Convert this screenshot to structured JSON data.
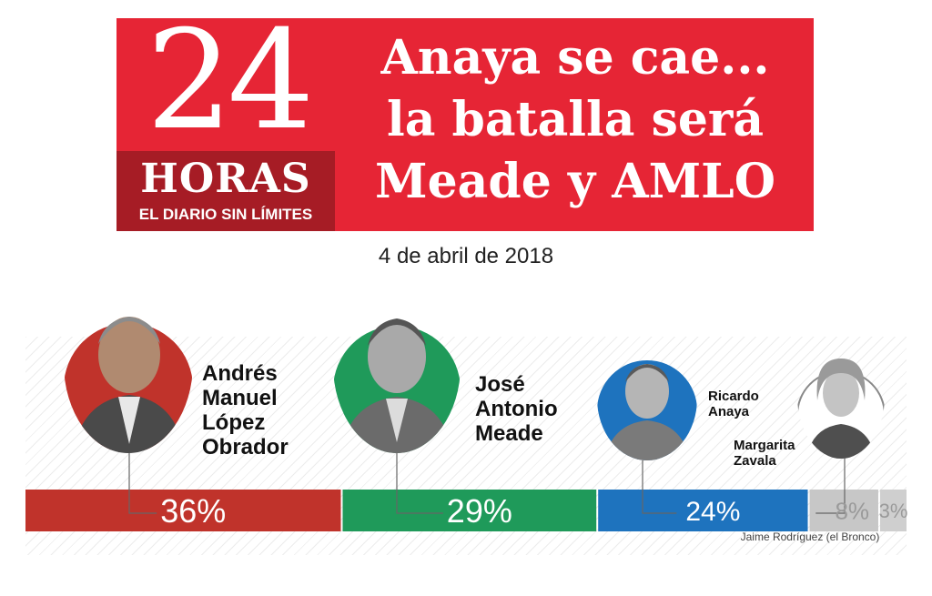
{
  "masthead": {
    "number": "24",
    "word": "HORAS",
    "tagline": "EL DIARIO SIN LÍMITES"
  },
  "headline": [
    "Anaya se cae...",
    "la batalla será",
    "Meade y AMLO"
  ],
  "date": "4 de abril de 2018",
  "colors": {
    "banner_red": "#e62535",
    "logo_dark_red": "#a61c25",
    "amlo_red": "#c0332b",
    "meade_green": "#1f9a5a",
    "anaya_blue": "#1e73be",
    "zavala_grey": "#c7c7c7",
    "bronco_grey": "#cfcfcf"
  },
  "candidates": [
    {
      "name": "Andrés\nManuel\nLópez\nObrador"
    },
    {
      "name": "José\nAntonio\nMeade"
    },
    {
      "name": "Ricardo\nAnaya"
    },
    {
      "name": "Margarita\nZavala"
    },
    {
      "name": "Jaime Rodríguez (el Bronco)"
    }
  ],
  "chart_data": {
    "type": "bar",
    "orientation": "horizontal-stacked",
    "categories": [
      "Andrés Manuel López Obrador",
      "José Antonio Meade",
      "Ricardo Anaya",
      "Margarita Zavala",
      "Jaime Rodríguez (el Bronco)"
    ],
    "values": [
      36,
      29,
      24,
      8,
      3
    ],
    "labels": [
      "36%",
      "29%",
      "24%",
      "8%",
      "3%"
    ],
    "colors": [
      "#c0332b",
      "#1f9a5a",
      "#1e73be",
      "#c7c7c7",
      "#cfcfcf"
    ],
    "unit": "%"
  }
}
